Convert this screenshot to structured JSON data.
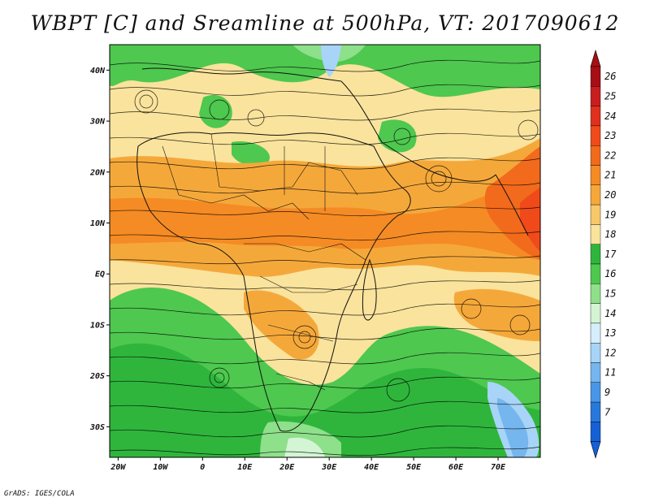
{
  "title": "WBPT [C] and Sreamline at 500hPa, VT: 2017090612",
  "credit": "GrADS: IGES/COLA",
  "map": {
    "lat_labels": [
      "40N",
      "30N",
      "20N",
      "10N",
      "EQ",
      "10S",
      "20S",
      "30S"
    ],
    "lon_labels": [
      "20W",
      "10W",
      "0",
      "10E",
      "20E",
      "30E",
      "40E",
      "50E",
      "60E",
      "70E"
    ],
    "lat_values": [
      40,
      30,
      20,
      10,
      0,
      -10,
      -20,
      -30
    ],
    "lon_values": [
      -20,
      -10,
      0,
      10,
      20,
      30,
      40,
      50,
      60,
      70
    ],
    "extent": {
      "lon_min": -22,
      "lon_max": 80,
      "lat_min": -36,
      "lat_max": 45
    }
  },
  "colorbar": {
    "labels": [
      "26",
      "25",
      "24",
      "23",
      "22",
      "21",
      "20",
      "19",
      "18",
      "17",
      "16",
      "15",
      "14",
      "13",
      "12",
      "11",
      "9",
      "7"
    ],
    "colors": [
      "#a50f15",
      "#c81e1e",
      "#e0301e",
      "#f04a1a",
      "#f26a1c",
      "#f58b24",
      "#f5a83a",
      "#f7c86a",
      "#fae39c",
      "#2fb53c",
      "#4ec84f",
      "#8ee08a",
      "#d4f5d4",
      "#d6eefc",
      "#a8d4f7",
      "#76b6ef",
      "#4896e6",
      "#2878dc",
      "#1560d6"
    ],
    "top_arrow_color": "#a50f15",
    "bottom_arrow_color": "#1560d6"
  }
}
